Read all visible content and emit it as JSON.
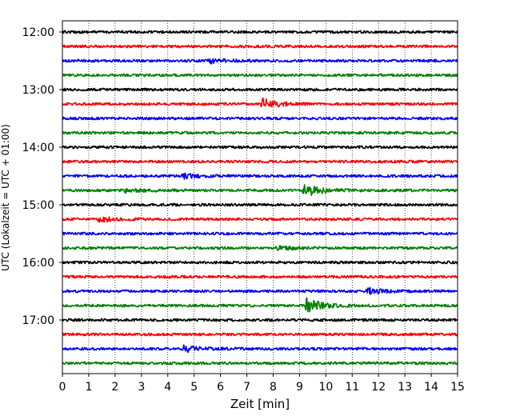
{
  "chart_data": {
    "type": "line",
    "title": "",
    "xlabel": "Zeit  [min]",
    "ylabel": "UTC (Lokalzeit = UTC + 01:00)",
    "xlim": [
      0,
      15
    ],
    "x_ticks": [
      "0",
      "1",
      "2",
      "3",
      "4",
      "5",
      "6",
      "7",
      "8",
      "9",
      "10",
      "11",
      "12",
      "13",
      "14",
      "15"
    ],
    "y_ticks": [
      "12:00",
      "13:00",
      "14:00",
      "15:00",
      "16:00",
      "17:00"
    ],
    "grid": "vertical dotted",
    "trace_interval_minutes": 15,
    "trace_colors": [
      "#000000",
      "#ff0000",
      "#0000ff",
      "#008000"
    ],
    "traces": [
      {
        "start": "12:00",
        "color": "#000000",
        "events": []
      },
      {
        "start": "12:15",
        "color": "#ff0000",
        "events": []
      },
      {
        "start": "12:30",
        "color": "#0000ff",
        "events": [
          {
            "t": 5.6,
            "amp": 0.35
          }
        ]
      },
      {
        "start": "12:45",
        "color": "#008000",
        "events": []
      },
      {
        "start": "13:00",
        "color": "#000000",
        "events": []
      },
      {
        "start": "13:15",
        "color": "#ff0000",
        "events": [
          {
            "t": 7.6,
            "amp": 0.7
          }
        ]
      },
      {
        "start": "13:30",
        "color": "#0000ff",
        "events": []
      },
      {
        "start": "13:45",
        "color": "#008000",
        "events": []
      },
      {
        "start": "14:00",
        "color": "#000000",
        "events": []
      },
      {
        "start": "14:15",
        "color": "#ff0000",
        "events": []
      },
      {
        "start": "14:30",
        "color": "#0000ff",
        "events": [
          {
            "t": 4.6,
            "amp": 0.3
          }
        ]
      },
      {
        "start": "14:45",
        "color": "#008000",
        "events": [
          {
            "t": 9.2,
            "amp": 0.8
          },
          {
            "t": 2.4,
            "amp": 0.25
          }
        ]
      },
      {
        "start": "15:00",
        "color": "#000000",
        "events": []
      },
      {
        "start": "15:15",
        "color": "#ff0000",
        "events": [
          {
            "t": 1.4,
            "amp": 0.35
          }
        ]
      },
      {
        "start": "15:30",
        "color": "#0000ff",
        "events": []
      },
      {
        "start": "15:45",
        "color": "#008000",
        "events": [
          {
            "t": 8.2,
            "amp": 0.3
          }
        ]
      },
      {
        "start": "16:00",
        "color": "#000000",
        "events": []
      },
      {
        "start": "16:15",
        "color": "#ff0000",
        "events": []
      },
      {
        "start": "16:30",
        "color": "#0000ff",
        "events": [
          {
            "t": 11.6,
            "amp": 0.4
          }
        ]
      },
      {
        "start": "16:45",
        "color": "#008000",
        "events": [
          {
            "t": 9.25,
            "amp": 1.0
          }
        ]
      },
      {
        "start": "17:00",
        "color": "#000000",
        "events": []
      },
      {
        "start": "17:15",
        "color": "#ff0000",
        "events": []
      },
      {
        "start": "17:30",
        "color": "#0000ff",
        "events": [
          {
            "t": 4.6,
            "amp": 0.4
          }
        ]
      },
      {
        "start": "17:45",
        "color": "#008000",
        "events": []
      }
    ]
  }
}
